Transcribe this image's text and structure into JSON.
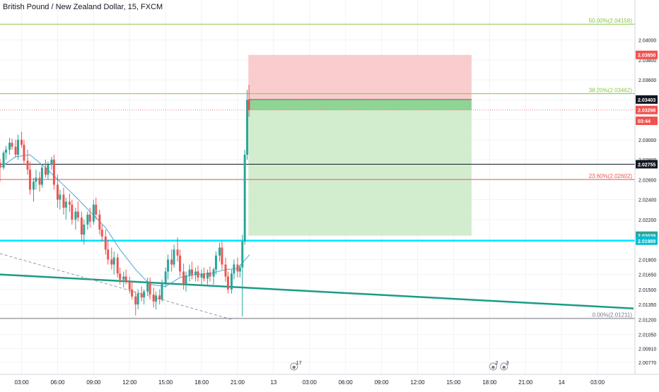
{
  "header": {
    "title": "British Pound / New Zealand Dollar, 15, FXCM"
  },
  "colors": {
    "up": "#26a69a",
    "down": "#ef5350",
    "ma": "#4fa6d6",
    "fib": "#8bc34a",
    "support": "#00e5ff",
    "trendline": "#1b9c85",
    "stop_zone": "#f8c4c4",
    "target_zone": "#cdebc9",
    "entry_zone": "#8fd494"
  },
  "chart_data": {
    "type": "candlestick",
    "y_range": [
      2.0065,
      2.044
    ],
    "y_ticks": [
      "2.04000",
      "2.03800",
      "2.03600",
      "2.03400",
      "2.03200",
      "2.03000",
      "2.02800",
      "2.02600",
      "2.02400",
      "2.02200",
      "2.02000",
      "2.01800",
      "2.01650",
      "2.01500",
      "2.01350",
      "2.01200",
      "2.01050",
      "2.00910",
      "2.00770"
    ],
    "x_ticks": [
      "03:00",
      "06:00",
      "09:00",
      "12:00",
      "15:00",
      "18:00",
      "21:00",
      "13",
      "03:00",
      "06:00",
      "09:00",
      "12:00",
      "15:00",
      "18:00",
      "21:00",
      "14",
      "03:00"
    ],
    "x_ticks_hours": [
      3,
      6,
      9,
      12,
      15,
      18,
      21,
      24,
      27,
      30,
      33,
      36,
      39,
      42,
      45,
      48,
      51
    ],
    "x_range_hours": [
      1.2,
      54.0
    ],
    "fib_levels": [
      {
        "label": "50.00%(2.04158)",
        "price": 2.04158
      },
      {
        "label": "38.20%(2.03462)",
        "price": 2.03462
      },
      {
        "label": "23.60%(2.02602)",
        "price": 2.02602
      },
      {
        "label": "0.00%(2.01211)",
        "price": 2.01211
      }
    ],
    "price_tags": [
      {
        "label": "2.03850",
        "price": 2.0385,
        "color": "#ef5350"
      },
      {
        "label": "2.03403",
        "price": 2.03403,
        "color": "#131722"
      },
      {
        "label": "2.03298",
        "price": 2.03298,
        "color": "#ef5350"
      },
      {
        "label": "03:44",
        "price": 2.0319,
        "color": "#ef5350"
      },
      {
        "label": "2.02755",
        "price": 2.02755,
        "color": "#131722"
      },
      {
        "label": "2.02039",
        "price": 2.02039,
        "color": "#26a69a"
      },
      {
        "label": "2.01989",
        "price": 2.01989,
        "color": "#00bcd4"
      }
    ],
    "lines": {
      "current_price": 2.03298,
      "black_level": 2.02755,
      "support_level": 2.01989
    },
    "trendline": {
      "h1": 1.2,
      "p1": 2.0165,
      "h2": 54.0,
      "p2": 2.0131
    },
    "dashed_line": {
      "h1": 1.2,
      "p1": 2.0186,
      "h2": 20.5,
      "p2": 2.012
    },
    "position": {
      "h_start": 21.9,
      "h_end": 40.5,
      "stop": 2.0385,
      "entry": 2.03403,
      "target": 2.02039,
      "current": 2.03298
    },
    "events": [
      {
        "label": "17",
        "hour": 25.7
      },
      {
        "label": "2",
        "hour": 42.3
      },
      {
        "label": "3",
        "hour": 43.2
      }
    ],
    "candles": [
      [
        1.2,
        2.0277,
        2.0281,
        2.0258,
        2.0272
      ],
      [
        1.5,
        2.0272,
        2.0289,
        2.027,
        2.0287
      ],
      [
        1.7,
        2.0287,
        2.0294,
        2.028,
        2.029
      ],
      [
        2.0,
        2.029,
        2.0302,
        2.0285,
        2.0297
      ],
      [
        2.2,
        2.0297,
        2.0301,
        2.029,
        2.0293
      ],
      [
        2.5,
        2.0293,
        2.03,
        2.0282,
        2.0285
      ],
      [
        2.7,
        2.0285,
        2.0305,
        2.028,
        2.03
      ],
      [
        3.0,
        2.03,
        2.0308,
        2.0292,
        2.0295
      ],
      [
        3.2,
        2.0295,
        2.03,
        2.0275,
        2.0279
      ],
      [
        3.5,
        2.0279,
        2.029,
        2.0265,
        2.027
      ],
      [
        3.7,
        2.027,
        2.0278,
        2.0245,
        2.025
      ],
      [
        4.0,
        2.025,
        2.0262,
        2.0238,
        2.0258
      ],
      [
        4.2,
        2.0258,
        2.027,
        2.025,
        2.0262
      ],
      [
        4.5,
        2.0262,
        2.0268,
        2.0248,
        2.0255
      ],
      [
        4.7,
        2.0255,
        2.0275,
        2.0252,
        2.0272
      ],
      [
        5.0,
        2.0272,
        2.028,
        2.0262,
        2.0265
      ],
      [
        5.2,
        2.0265,
        2.0278,
        2.026,
        2.0275
      ],
      [
        5.5,
        2.0275,
        2.0283,
        2.027,
        2.028
      ],
      [
        5.7,
        2.028,
        2.0285,
        2.025,
        2.0255
      ],
      [
        6.0,
        2.0255,
        2.0265,
        2.0232,
        2.024
      ],
      [
        6.2,
        2.024,
        2.025,
        2.023,
        2.0245
      ],
      [
        6.5,
        2.0245,
        2.0252,
        2.0225,
        2.0232
      ],
      [
        6.7,
        2.0232,
        2.0242,
        2.022,
        2.0238
      ],
      [
        7.0,
        2.0238,
        2.0246,
        2.0228,
        2.0235
      ],
      [
        7.2,
        2.0235,
        2.024,
        2.0215,
        2.022
      ],
      [
        7.5,
        2.022,
        2.0232,
        2.021,
        2.0228
      ],
      [
        7.7,
        2.0228,
        2.0238,
        2.0218,
        2.0222
      ],
      [
        8.0,
        2.0222,
        2.0228,
        2.0198,
        2.0205
      ],
      [
        8.2,
        2.0205,
        2.022,
        2.0195,
        2.0215
      ],
      [
        8.5,
        2.0215,
        2.0228,
        2.021,
        2.0225
      ],
      [
        8.7,
        2.0225,
        2.0232,
        2.0212,
        2.0218
      ],
      [
        9.0,
        2.0218,
        2.024,
        2.0215,
        2.0235
      ],
      [
        9.2,
        2.0235,
        2.0242,
        2.022,
        2.0225
      ],
      [
        9.5,
        2.0225,
        2.023,
        2.0205,
        2.021
      ],
      [
        9.7,
        2.021,
        2.0215,
        2.0198,
        2.0203
      ],
      [
        10.0,
        2.0203,
        2.021,
        2.0185,
        2.019
      ],
      [
        10.2,
        2.019,
        2.02,
        2.0175,
        2.018
      ],
      [
        10.5,
        2.018,
        2.0192,
        2.017,
        2.0175
      ],
      [
        10.7,
        2.0175,
        2.0188,
        2.0165,
        2.0182
      ],
      [
        11.0,
        2.0182,
        2.0186,
        2.0162,
        2.0166
      ],
      [
        11.2,
        2.0166,
        2.0172,
        2.0155,
        2.016
      ],
      [
        11.5,
        2.016,
        2.0168,
        2.0152,
        2.0163
      ],
      [
        11.7,
        2.0163,
        2.017,
        2.0155,
        2.0158
      ],
      [
        12.0,
        2.0158,
        2.0163,
        2.0146,
        2.015
      ],
      [
        12.2,
        2.015,
        2.0158,
        2.014,
        2.0143
      ],
      [
        12.5,
        2.0143,
        2.0148,
        2.0124,
        2.0135
      ],
      [
        12.7,
        2.0135,
        2.015,
        2.013,
        2.0146
      ],
      [
        13.0,
        2.0146,
        2.0153,
        2.0138,
        2.0142
      ],
      [
        13.2,
        2.0142,
        2.015,
        2.0135,
        2.0148
      ],
      [
        13.5,
        2.0148,
        2.0162,
        2.0144,
        2.0158
      ],
      [
        13.7,
        2.0158,
        2.0162,
        2.014,
        2.0145
      ],
      [
        14.0,
        2.0145,
        2.0152,
        2.0132,
        2.0138
      ],
      [
        14.2,
        2.0138,
        2.0148,
        2.013,
        2.0144
      ],
      [
        14.5,
        2.0144,
        2.015,
        2.0135,
        2.014
      ],
      [
        14.7,
        2.014,
        2.016,
        2.0138,
        2.0157
      ],
      [
        15.0,
        2.0157,
        2.0172,
        2.0152,
        2.0168
      ],
      [
        15.2,
        2.0168,
        2.0185,
        2.016,
        2.018
      ],
      [
        15.5,
        2.018,
        2.019,
        2.0168,
        2.0175
      ],
      [
        15.7,
        2.0175,
        2.0195,
        2.0172,
        2.019
      ],
      [
        16.0,
        2.019,
        2.0202,
        2.0178,
        2.0184
      ],
      [
        16.2,
        2.0184,
        2.019,
        2.0163,
        2.0168
      ],
      [
        16.5,
        2.0168,
        2.0176,
        2.015,
        2.0155
      ],
      [
        16.7,
        2.0155,
        2.0168,
        2.0148,
        2.0164
      ],
      [
        17.0,
        2.0164,
        2.0175,
        2.0158,
        2.017
      ],
      [
        17.2,
        2.017,
        2.0178,
        2.016,
        2.0165
      ],
      [
        17.5,
        2.0165,
        2.0172,
        2.0158,
        2.0168
      ],
      [
        17.7,
        2.0168,
        2.0174,
        2.0158,
        2.0162
      ],
      [
        18.0,
        2.0162,
        2.017,
        2.0155,
        2.0166
      ],
      [
        18.2,
        2.0166,
        2.0172,
        2.0158,
        2.0161
      ],
      [
        18.5,
        2.0161,
        2.017,
        2.0155,
        2.0167
      ],
      [
        18.7,
        2.0167,
        2.0173,
        2.0158,
        2.0163
      ],
      [
        19.0,
        2.0163,
        2.0172,
        2.0155,
        2.017
      ],
      [
        19.2,
        2.017,
        2.0188,
        2.0165,
        2.0184
      ],
      [
        19.5,
        2.0184,
        2.0197,
        2.0178,
        2.0192
      ],
      [
        19.7,
        2.0192,
        2.0198,
        2.017,
        2.0175
      ],
      [
        20.0,
        2.0175,
        2.0182,
        2.0158,
        2.0163
      ],
      [
        20.2,
        2.0163,
        2.0168,
        2.0146,
        2.015
      ],
      [
        20.5,
        2.015,
        2.017,
        2.0146,
        2.0166
      ],
      [
        20.7,
        2.0166,
        2.018,
        2.016,
        2.0175
      ],
      [
        21.0,
        2.0175,
        2.0182,
        2.0162,
        2.0168
      ],
      [
        21.2,
        2.0168,
        2.0175,
        2.0162,
        2.0172
      ],
      [
        21.4,
        2.0172,
        2.0205,
        2.0123,
        2.0198
      ],
      [
        21.6,
        2.0198,
        2.029,
        2.0195,
        2.0285
      ],
      [
        21.8,
        2.0285,
        2.035,
        2.028,
        2.034
      ],
      [
        21.95,
        2.034,
        2.0355,
        2.0323,
        2.033
      ]
    ],
    "ma": [
      [
        1.2,
        2.0272
      ],
      [
        2.5,
        2.0283
      ],
      [
        3.7,
        2.0285
      ],
      [
        5.0,
        2.0272
      ],
      [
        6.2,
        2.0258
      ],
      [
        7.5,
        2.0243
      ],
      [
        8.7,
        2.0228
      ],
      [
        10.0,
        2.0212
      ],
      [
        11.2,
        2.019
      ],
      [
        12.5,
        2.017
      ],
      [
        13.7,
        2.0155
      ],
      [
        15.0,
        2.0153
      ],
      [
        16.2,
        2.0162
      ],
      [
        17.5,
        2.0165
      ],
      [
        18.7,
        2.0166
      ],
      [
        20.0,
        2.017
      ],
      [
        21.0,
        2.0171
      ],
      [
        22.0,
        2.0185
      ]
    ]
  }
}
